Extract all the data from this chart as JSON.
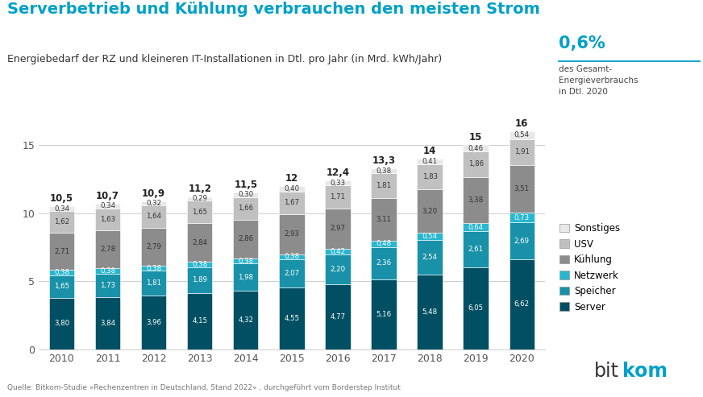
{
  "years": [
    "2010",
    "2011",
    "2012",
    "2013",
    "2014",
    "2015",
    "2016",
    "2017",
    "2018",
    "2019",
    "2020"
  ],
  "totals": [
    10.5,
    10.7,
    10.9,
    11.2,
    11.5,
    12.0,
    12.4,
    13.3,
    14.0,
    15.0,
    16.0
  ],
  "server": [
    3.8,
    3.84,
    3.96,
    4.15,
    4.32,
    4.55,
    4.77,
    5.16,
    5.48,
    6.05,
    6.62
  ],
  "speicher": [
    1.65,
    1.73,
    1.81,
    1.89,
    1.98,
    2.07,
    2.2,
    2.36,
    2.54,
    2.61,
    2.69
  ],
  "netzwerk": [
    0.38,
    0.38,
    0.38,
    0.38,
    0.38,
    0.38,
    0.42,
    0.48,
    0.54,
    0.64,
    0.73
  ],
  "kuehlung": [
    2.71,
    2.78,
    2.79,
    2.84,
    2.86,
    2.93,
    2.97,
    3.11,
    3.2,
    3.38,
    3.51
  ],
  "usv": [
    1.62,
    1.63,
    1.64,
    1.65,
    1.66,
    1.67,
    1.71,
    1.81,
    1.83,
    1.86,
    1.91
  ],
  "colors": {
    "server": "#004f63",
    "speicher": "#1991a8",
    "netzwerk": "#29b6d0",
    "kuehlung": "#8c8c8c",
    "usv": "#c0c0c0",
    "sonstiges": "#e8e8e8"
  },
  "title": "Serverbetrieb und Kühlung verbrauchen den meisten Strom",
  "subtitle": "Energiebedarf der RZ und kleineren IT-Installationen in Dtl. pro Jahr (in Mrd. kWh/Jahr)",
  "annotation_percent": "0,6%",
  "annotation_text": "des Gesamt-\nEnergieverbrauchs\nin Dtl. 2020",
  "source": "Quelle: Bitkom-Studie »Rechenzentren in Deutschland, Stand 2022« , durchgeführt vom Borderstep Institut",
  "ylim": [
    0,
    17.5
  ],
  "yticks": [
    0,
    5,
    10,
    15
  ],
  "background_color": "#ffffff",
  "title_color": "#00a0c8",
  "text_color": "#333333"
}
